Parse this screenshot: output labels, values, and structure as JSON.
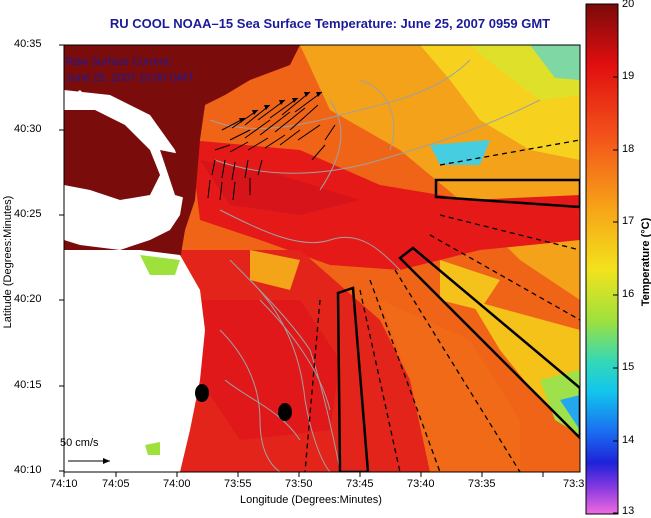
{
  "title": "RU COOL   NOAA–15  Sea Surface Temperature:  June 25, 2007 0959 GMT",
  "annotation": {
    "line1": "Raw Surface Current:",
    "line2": "June 25, 2007 10:00 GMT"
  },
  "scale_label": "50 cm/s",
  "map": {
    "xlabel": "Longitude (Degrees:Minutes)",
    "ylabel": "Latitude (Degrees:Minutes)",
    "xticks": [
      "74:10",
      "74:05",
      "74:00",
      "73:55",
      "73:50",
      "73:45",
      "73:40",
      "73:35",
      "73:3"
    ],
    "yticks": [
      "40:35",
      "40:30",
      "40:25",
      "40:20",
      "40:15",
      "40:10"
    ]
  },
  "colorbar": {
    "label": "Temperature (°C)",
    "ticks": [
      "20",
      "19",
      "18",
      "17",
      "16",
      "15",
      "14",
      "13"
    ],
    "range": [
      13,
      20
    ]
  },
  "colors": {
    "land": "#7a0c0c",
    "water_warm": "#e11a1a",
    "water_cool": "#f5c21a",
    "title": "#1b1b9a"
  }
}
